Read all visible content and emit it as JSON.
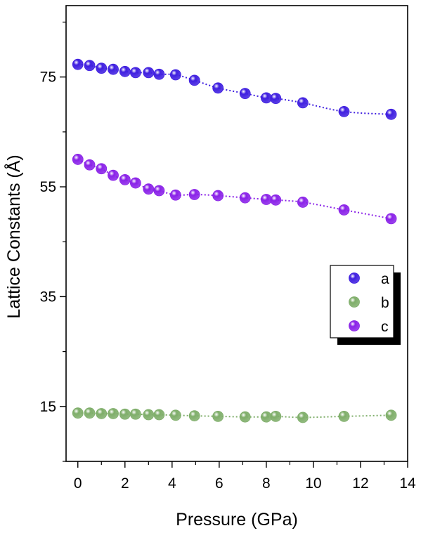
{
  "chart_data": {
    "type": "scatter",
    "xlabel": "Pressure (GPa)",
    "ylabel": "Lattice Constants (Å)",
    "xlim": [
      -0.5,
      14
    ],
    "ylim": [
      5,
      88
    ],
    "xticks": [
      0,
      2,
      4,
      6,
      8,
      10,
      12,
      14
    ],
    "yticks": [
      15,
      35,
      55,
      75
    ],
    "grid": false,
    "legend_position": "right-center",
    "series": [
      {
        "name": "a",
        "color": "#3f1fe0",
        "x": [
          0,
          0.5,
          1.0,
          1.5,
          2.0,
          2.45,
          3.0,
          3.45,
          4.15,
          4.95,
          5.95,
          7.1,
          8.0,
          8.4,
          9.55,
          11.3,
          13.3
        ],
        "y": [
          77.3,
          77.1,
          76.6,
          76.4,
          76.0,
          75.8,
          75.8,
          75.5,
          75.4,
          74.4,
          73.0,
          72.0,
          71.2,
          71.1,
          70.3,
          68.7,
          68.2
        ]
      },
      {
        "name": "b",
        "color": "#7fae6a",
        "x": [
          0,
          0.5,
          1.0,
          1.5,
          2.0,
          2.45,
          3.0,
          3.45,
          4.15,
          4.95,
          5.95,
          7.1,
          8.0,
          8.4,
          9.55,
          11.3,
          13.3
        ],
        "y": [
          13.8,
          13.8,
          13.7,
          13.7,
          13.6,
          13.6,
          13.5,
          13.5,
          13.4,
          13.3,
          13.2,
          13.1,
          13.1,
          13.2,
          13.0,
          13.2,
          13.4
        ]
      },
      {
        "name": "c",
        "color": "#8a22e8",
        "x": [
          0,
          0.5,
          1.0,
          1.5,
          2.0,
          2.45,
          3.0,
          3.45,
          4.15,
          4.95,
          5.95,
          7.1,
          8.0,
          8.4,
          9.55,
          11.3,
          13.3
        ],
        "y": [
          60.0,
          59.0,
          58.3,
          57.1,
          56.3,
          55.7,
          54.6,
          54.3,
          53.5,
          53.6,
          53.4,
          53.0,
          52.7,
          52.6,
          52.2,
          50.8,
          49.2
        ]
      }
    ]
  }
}
